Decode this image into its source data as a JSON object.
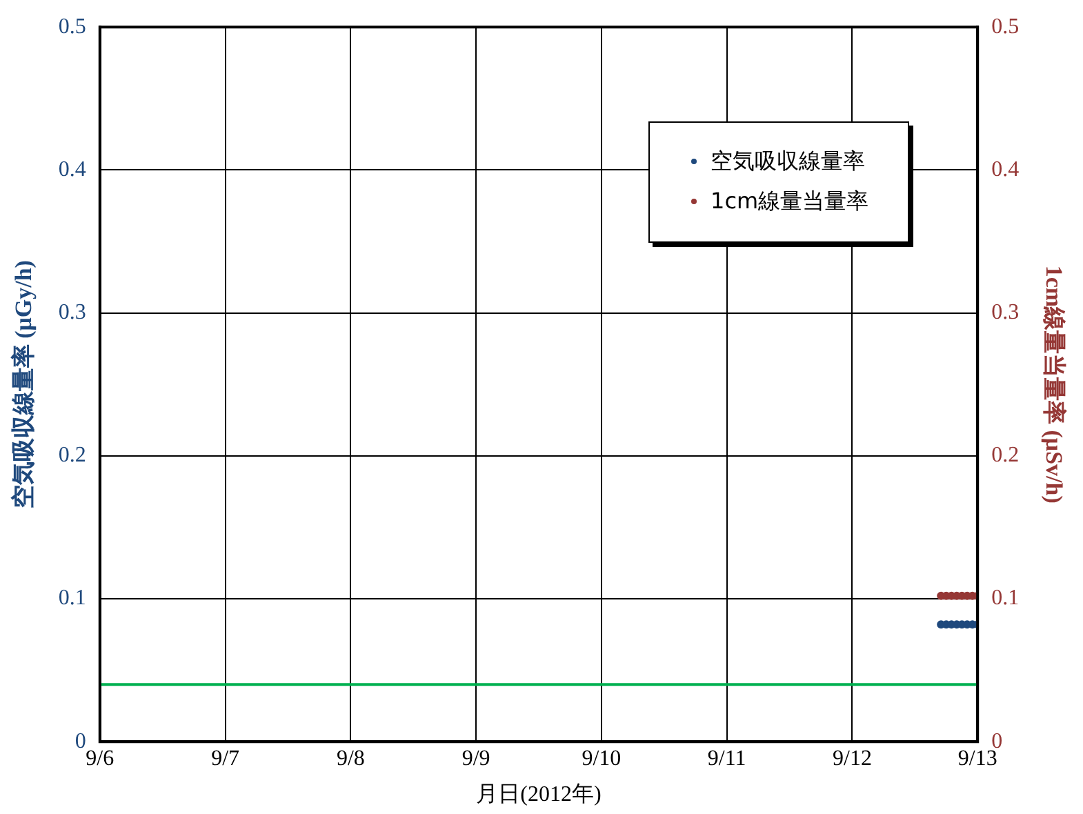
{
  "chart_data": {
    "type": "scatter",
    "xlabel": "月日(2012年)",
    "ylabel": "空気吸収線量率 (μGy/h)",
    "y2label": "1cm線量当量率 (μSv/h)",
    "x": [
      "2012-09-12T17:00",
      "2012-09-12T18:00",
      "2012-09-12T19:00",
      "2012-09-12T20:00",
      "2012-09-12T21:00",
      "2012-09-12T22:00",
      "2012-09-12T23:00",
      "2012-09-13T00:00"
    ],
    "series": [
      {
        "name": "空気吸収線量率",
        "color": "#1f497d",
        "values": [
          0.082,
          0.082,
          0.082,
          0.082,
          0.082,
          0.082,
          0.082,
          0.082
        ]
      },
      {
        "name": "1cm線量当量率",
        "color": "#953735",
        "axis": "y2",
        "values": [
          0.102,
          0.102,
          0.102,
          0.102,
          0.102,
          0.102,
          0.102,
          0.102
        ]
      }
    ],
    "xlim": [
      "2012-09-06",
      "2012-09-13"
    ],
    "xticks": [
      {
        "value": "2012-09-06",
        "label": "9/6"
      },
      {
        "value": "2012-09-07",
        "label": "9/7"
      },
      {
        "value": "2012-09-08",
        "label": "9/8"
      },
      {
        "value": "2012-09-09",
        "label": "9/9"
      },
      {
        "value": "2012-09-10",
        "label": "9/10"
      },
      {
        "value": "2012-09-11",
        "label": "9/11"
      },
      {
        "value": "2012-09-12",
        "label": "9/12"
      },
      {
        "value": "2012-09-13",
        "label": "9/13"
      }
    ],
    "ylim": [
      0,
      0.5
    ],
    "yticks": [
      0,
      0.1,
      0.2,
      0.3,
      0.4,
      0.5
    ],
    "y2lim": [
      0,
      0.5
    ],
    "y2ticks": [
      0,
      0.1,
      0.2,
      0.3,
      0.4,
      0.5
    ],
    "ref_lines": [
      {
        "axis": "y",
        "value": 0.04,
        "color": "#00b050"
      }
    ],
    "grid": true,
    "legend": "top right",
    "marker": "circle"
  }
}
